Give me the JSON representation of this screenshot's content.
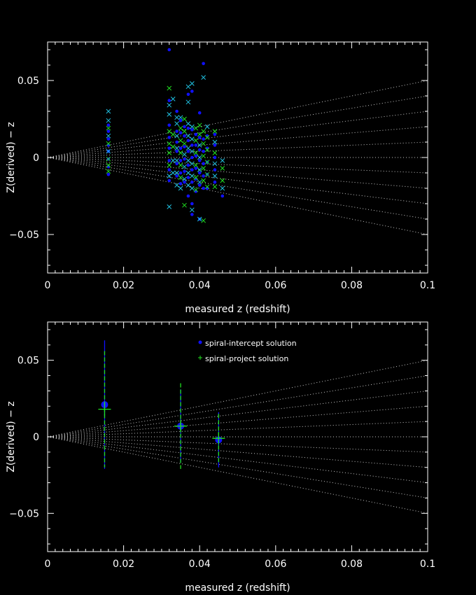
{
  "chart_data": [
    {
      "type": "scatter",
      "title": "",
      "xlabel": "measured z (redshift)",
      "ylabel": "Z(derived) − z",
      "xlim": [
        0,
        0.1
      ],
      "ylim": [
        -0.075,
        0.075
      ],
      "xticks": [
        0,
        0.02,
        0.04,
        0.06,
        0.08,
        0.1
      ],
      "xtick_labels": [
        "0",
        "0.02",
        "0.04",
        "0.06",
        "0.08",
        "0.1"
      ],
      "yticks": [
        -0.05,
        0,
        0.05
      ],
      "ytick_labels": [
        "−0.05",
        "0",
        "0.05"
      ],
      "reference_slopes": [
        -0.5,
        -0.4,
        -0.3,
        -0.2,
        -0.1,
        0,
        0.1,
        0.2,
        0.3,
        0.4,
        0.5
      ],
      "colors": {
        "intercept": "#1010ff",
        "project": "#20e020",
        "cross": "#20c0e0",
        "reference": "#c8c8c8"
      },
      "series": [
        {
          "marker": "dot",
          "points": [
            [
              0.016,
              0.021
            ],
            [
              0.016,
              0.017
            ],
            [
              0.016,
              0.012
            ],
            [
              0.016,
              0.008
            ],
            [
              0.016,
              0.004
            ],
            [
              0.016,
              -0.001
            ],
            [
              0.016,
              -0.006
            ],
            [
              0.016,
              -0.011
            ],
            [
              0.032,
              0.07
            ],
            [
              0.032,
              0.037
            ],
            [
              0.032,
              0.021
            ],
            [
              0.032,
              0.013
            ],
            [
              0.032,
              0.006
            ],
            [
              0.032,
              -0.002
            ],
            [
              0.032,
              -0.008
            ],
            [
              0.032,
              -0.015
            ],
            [
              0.034,
              0.03
            ],
            [
              0.034,
              0.017
            ],
            [
              0.034,
              0.01
            ],
            [
              0.034,
              0.004
            ],
            [
              0.034,
              -0.004
            ],
            [
              0.034,
              -0.012
            ],
            [
              0.035,
              0.024
            ],
            [
              0.035,
              0.016
            ],
            [
              0.035,
              0.006
            ],
            [
              0.035,
              -0.002
            ],
            [
              0.035,
              -0.01
            ],
            [
              0.035,
              -0.017
            ],
            [
              0.036,
              0.02
            ],
            [
              0.036,
              0.014
            ],
            [
              0.036,
              0.007
            ],
            [
              0.036,
              -0.001
            ],
            [
              0.036,
              -0.009
            ],
            [
              0.036,
              -0.016
            ],
            [
              0.037,
              0.041
            ],
            [
              0.037,
              0.019
            ],
            [
              0.037,
              0.011
            ],
            [
              0.037,
              0.004
            ],
            [
              0.037,
              -0.005
            ],
            [
              0.037,
              -0.013
            ],
            [
              0.037,
              -0.025
            ],
            [
              0.038,
              0.043
            ],
            [
              0.038,
              0.018
            ],
            [
              0.038,
              0.008
            ],
            [
              0.038,
              0.0
            ],
            [
              0.038,
              -0.008
            ],
            [
              0.038,
              -0.016
            ],
            [
              0.038,
              -0.03
            ],
            [
              0.038,
              -0.037
            ],
            [
              0.039,
              0.015
            ],
            [
              0.039,
              0.008
            ],
            [
              0.039,
              0.001
            ],
            [
              0.039,
              -0.007
            ],
            [
              0.039,
              -0.014
            ],
            [
              0.039,
              -0.022
            ],
            [
              0.04,
              0.029
            ],
            [
              0.04,
              0.013
            ],
            [
              0.04,
              0.005
            ],
            [
              0.04,
              -0.002
            ],
            [
              0.04,
              -0.01
            ],
            [
              0.04,
              -0.018
            ],
            [
              0.04,
              -0.04
            ],
            [
              0.041,
              0.061
            ],
            [
              0.041,
              0.012
            ],
            [
              0.041,
              0.004
            ],
            [
              0.041,
              -0.004
            ],
            [
              0.041,
              -0.012
            ],
            [
              0.041,
              -0.02
            ],
            [
              0.042,
              0.014
            ],
            [
              0.042,
              0.006
            ],
            [
              0.042,
              -0.003
            ],
            [
              0.042,
              -0.011
            ],
            [
              0.042,
              -0.02
            ],
            [
              0.044,
              0.015
            ],
            [
              0.044,
              0.008
            ],
            [
              0.044,
              0.0
            ],
            [
              0.044,
              -0.008
            ],
            [
              0.044,
              -0.016
            ],
            [
              0.046,
              -0.025
            ]
          ]
        },
        {
          "marker": "cross",
          "points": [
            [
              0.016,
              0.03
            ],
            [
              0.016,
              0.024
            ],
            [
              0.016,
              0.019
            ],
            [
              0.016,
              0.014
            ],
            [
              0.016,
              0.009
            ],
            [
              0.016,
              0.004
            ],
            [
              0.016,
              -0.001
            ],
            [
              0.016,
              -0.005
            ],
            [
              0.016,
              -0.009
            ],
            [
              0.032,
              0.045
            ],
            [
              0.032,
              0.034
            ],
            [
              0.032,
              0.028
            ],
            [
              0.032,
              0.017
            ],
            [
              0.032,
              0.009
            ],
            [
              0.032,
              0.003
            ],
            [
              0.032,
              -0.005
            ],
            [
              0.032,
              -0.012
            ],
            [
              0.032,
              -0.032
            ],
            [
              0.033,
              0.038
            ],
            [
              0.033,
              0.015
            ],
            [
              0.033,
              0.007
            ],
            [
              0.033,
              -0.002
            ],
            [
              0.033,
              -0.01
            ],
            [
              0.034,
              0.026
            ],
            [
              0.034,
              0.022
            ],
            [
              0.034,
              0.014
            ],
            [
              0.034,
              0.006
            ],
            [
              0.034,
              -0.002
            ],
            [
              0.034,
              -0.01
            ],
            [
              0.034,
              -0.018
            ],
            [
              0.035,
              0.026
            ],
            [
              0.035,
              0.019
            ],
            [
              0.035,
              0.011
            ],
            [
              0.035,
              0.003
            ],
            [
              0.035,
              -0.005
            ],
            [
              0.035,
              -0.013
            ],
            [
              0.035,
              -0.02
            ],
            [
              0.036,
              0.025
            ],
            [
              0.036,
              0.017
            ],
            [
              0.036,
              0.009
            ],
            [
              0.036,
              0.002
            ],
            [
              0.036,
              -0.006
            ],
            [
              0.036,
              -0.014
            ],
            [
              0.036,
              -0.031
            ],
            [
              0.037,
              0.046
            ],
            [
              0.037,
              0.036
            ],
            [
              0.037,
              0.022
            ],
            [
              0.037,
              0.014
            ],
            [
              0.037,
              0.006
            ],
            [
              0.037,
              -0.002
            ],
            [
              0.037,
              -0.01
            ],
            [
              0.037,
              -0.018
            ],
            [
              0.038,
              0.048
            ],
            [
              0.038,
              0.02
            ],
            [
              0.038,
              0.012
            ],
            [
              0.038,
              0.004
            ],
            [
              0.038,
              -0.004
            ],
            [
              0.038,
              -0.012
            ],
            [
              0.038,
              -0.02
            ],
            [
              0.038,
              -0.034
            ],
            [
              0.039,
              0.019
            ],
            [
              0.039,
              0.011
            ],
            [
              0.039,
              0.003
            ],
            [
              0.039,
              -0.005
            ],
            [
              0.039,
              -0.013
            ],
            [
              0.039,
              -0.021
            ],
            [
              0.04,
              0.021
            ],
            [
              0.04,
              0.015
            ],
            [
              0.04,
              0.008
            ],
            [
              0.04,
              0.0
            ],
            [
              0.04,
              -0.008
            ],
            [
              0.04,
              -0.016
            ],
            [
              0.04,
              -0.04
            ],
            [
              0.041,
              0.052
            ],
            [
              0.041,
              0.017
            ],
            [
              0.041,
              0.009
            ],
            [
              0.041,
              0.001
            ],
            [
              0.041,
              -0.007
            ],
            [
              0.041,
              -0.015
            ],
            [
              0.041,
              -0.041
            ],
            [
              0.042,
              0.02
            ],
            [
              0.042,
              0.013
            ],
            [
              0.042,
              0.005
            ],
            [
              0.042,
              -0.003
            ],
            [
              0.042,
              -0.011
            ],
            [
              0.042,
              -0.019
            ],
            [
              0.044,
              0.017
            ],
            [
              0.044,
              0.01
            ],
            [
              0.044,
              0.003
            ],
            [
              0.044,
              -0.004
            ],
            [
              0.044,
              -0.012
            ],
            [
              0.044,
              -0.019
            ],
            [
              0.046,
              -0.002
            ],
            [
              0.046,
              -0.007
            ],
            [
              0.046,
              -0.015
            ],
            [
              0.046,
              -0.02
            ]
          ]
        }
      ]
    },
    {
      "type": "scatter",
      "title": "",
      "xlabel": "measured z (redshift)",
      "ylabel": "Z(derived) − z",
      "xlim": [
        0,
        0.1
      ],
      "ylim": [
        -0.075,
        0.075
      ],
      "xticks": [
        0,
        0.02,
        0.04,
        0.06,
        0.08,
        0.1
      ],
      "xtick_labels": [
        "0",
        "0.02",
        "0.04",
        "0.06",
        "0.08",
        "0.1"
      ],
      "yticks": [
        -0.05,
        0,
        0.05
      ],
      "ytick_labels": [
        "−0.05",
        "0",
        "0.05"
      ],
      "reference_slopes": [
        -0.5,
        -0.4,
        -0.3,
        -0.2,
        -0.1,
        0,
        0.1,
        0.2,
        0.3,
        0.4,
        0.5
      ],
      "legend": {
        "placement": "top-center",
        "entries": [
          "spiral-intercept solution",
          "spiral-project solution"
        ]
      },
      "colors": {
        "intercept": "#1010ff",
        "project": "#20e020",
        "reference": "#c8c8c8"
      },
      "series": [
        {
          "name": "spiral-intercept solution",
          "marker": "dot",
          "points": [
            {
              "x": 0.015,
              "y": 0.021,
              "ylo": -0.021,
              "yhi": 0.063
            },
            {
              "x": 0.035,
              "y": 0.007,
              "ylo": -0.017,
              "yhi": 0.031
            },
            {
              "x": 0.045,
              "y": -0.002,
              "ylo": -0.02,
              "yhi": 0.016
            }
          ]
        },
        {
          "name": "spiral-project solution",
          "marker": "cross",
          "points": [
            {
              "x": 0.015,
              "y": 0.018,
              "ylo": -0.02,
              "yhi": 0.056
            },
            {
              "x": 0.035,
              "y": 0.007,
              "ylo": -0.021,
              "yhi": 0.035
            },
            {
              "x": 0.045,
              "y": -0.001,
              "ylo": -0.017,
              "yhi": 0.015
            }
          ]
        }
      ]
    }
  ]
}
